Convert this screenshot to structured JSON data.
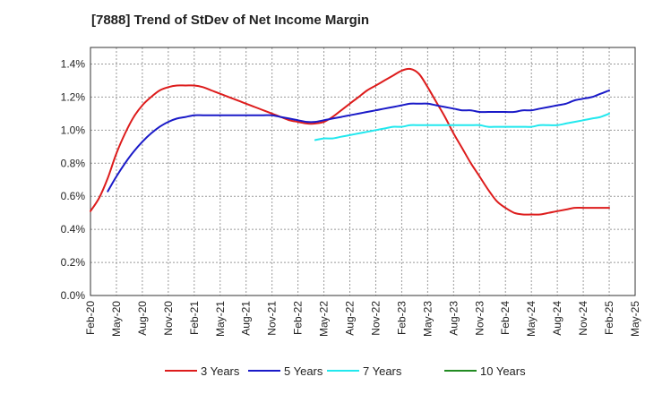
{
  "chart_data": {
    "type": "line",
    "title": "[7888]  Trend of StDev of Net Income Margin",
    "xlabel": "",
    "ylabel": "",
    "x_ticks": [
      "Feb-20",
      "May-20",
      "Aug-20",
      "Nov-20",
      "Feb-21",
      "May-21",
      "Aug-21",
      "Nov-21",
      "Feb-22",
      "May-22",
      "Aug-22",
      "Nov-22",
      "Feb-23",
      "May-23",
      "Aug-23",
      "Nov-23",
      "Feb-24",
      "May-24",
      "Aug-24",
      "Nov-24",
      "Feb-25",
      "May-25"
    ],
    "y_ticks": [
      "0.0%",
      "0.2%",
      "0.4%",
      "0.6%",
      "0.8%",
      "1.0%",
      "1.2%",
      "1.4%"
    ],
    "ylim": [
      0,
      1.5
    ],
    "grid": true,
    "legend_position": "bottom",
    "series": [
      {
        "name": "3 Years",
        "color": "#dd1c1c",
        "points": [
          [
            "Feb-20",
            0.51
          ],
          [
            "Mar-20",
            0.59
          ],
          [
            "Apr-20",
            0.71
          ],
          [
            "May-20",
            0.86
          ],
          [
            "Jun-20",
            0.98
          ],
          [
            "Jul-20",
            1.08
          ],
          [
            "Aug-20",
            1.15
          ],
          [
            "Sep-20",
            1.2
          ],
          [
            "Oct-20",
            1.24
          ],
          [
            "Nov-20",
            1.26
          ],
          [
            "Dec-20",
            1.27
          ],
          [
            "Jan-21",
            1.27
          ],
          [
            "Feb-21",
            1.27
          ],
          [
            "Mar-21",
            1.26
          ],
          [
            "Apr-21",
            1.24
          ],
          [
            "May-21",
            1.22
          ],
          [
            "Jun-21",
            1.2
          ],
          [
            "Jul-21",
            1.18
          ],
          [
            "Aug-21",
            1.16
          ],
          [
            "Sep-21",
            1.14
          ],
          [
            "Oct-21",
            1.12
          ],
          [
            "Nov-21",
            1.1
          ],
          [
            "Dec-21",
            1.08
          ],
          [
            "Jan-22",
            1.06
          ],
          [
            "Feb-22",
            1.05
          ],
          [
            "Mar-22",
            1.04
          ],
          [
            "Apr-22",
            1.04
          ],
          [
            "May-22",
            1.05
          ],
          [
            "Jun-22",
            1.08
          ],
          [
            "Jul-22",
            1.12
          ],
          [
            "Aug-22",
            1.16
          ],
          [
            "Sep-22",
            1.2
          ],
          [
            "Oct-22",
            1.24
          ],
          [
            "Nov-22",
            1.27
          ],
          [
            "Dec-22",
            1.3
          ],
          [
            "Jan-23",
            1.33
          ],
          [
            "Feb-23",
            1.36
          ],
          [
            "Mar-23",
            1.37
          ],
          [
            "Apr-23",
            1.34
          ],
          [
            "May-23",
            1.26
          ],
          [
            "Jun-23",
            1.17
          ],
          [
            "Jul-23",
            1.08
          ],
          [
            "Aug-23",
            0.98
          ],
          [
            "Sep-23",
            0.89
          ],
          [
            "Oct-23",
            0.8
          ],
          [
            "Nov-23",
            0.72
          ],
          [
            "Dec-23",
            0.64
          ],
          [
            "Jan-24",
            0.57
          ],
          [
            "Feb-24",
            0.53
          ],
          [
            "Mar-24",
            0.5
          ],
          [
            "Apr-24",
            0.49
          ],
          [
            "May-24",
            0.49
          ],
          [
            "Jun-24",
            0.49
          ],
          [
            "Jul-24",
            0.5
          ],
          [
            "Aug-24",
            0.51
          ],
          [
            "Sep-24",
            0.52
          ],
          [
            "Oct-24",
            0.53
          ],
          [
            "Nov-24",
            0.53
          ],
          [
            "Dec-24",
            0.53
          ],
          [
            "Jan-25",
            0.53
          ],
          [
            "Feb-25",
            0.53
          ]
        ]
      },
      {
        "name": "5 Years",
        "color": "#1a1ac8",
        "points": [
          [
            "Apr-20",
            0.63
          ],
          [
            "May-20",
            0.72
          ],
          [
            "Jun-20",
            0.8
          ],
          [
            "Jul-20",
            0.87
          ],
          [
            "Aug-20",
            0.93
          ],
          [
            "Sep-20",
            0.98
          ],
          [
            "Oct-20",
            1.02
          ],
          [
            "Nov-20",
            1.05
          ],
          [
            "Dec-20",
            1.07
          ],
          [
            "Jan-21",
            1.08
          ],
          [
            "Feb-21",
            1.09
          ],
          [
            "Mar-21",
            1.09
          ],
          [
            "Apr-21",
            1.09
          ],
          [
            "May-21",
            1.09
          ],
          [
            "Jun-21",
            1.09
          ],
          [
            "Jul-21",
            1.09
          ],
          [
            "Aug-21",
            1.09
          ],
          [
            "Sep-21",
            1.09
          ],
          [
            "Oct-21",
            1.09
          ],
          [
            "Nov-21",
            1.09
          ],
          [
            "Dec-21",
            1.08
          ],
          [
            "Jan-22",
            1.07
          ],
          [
            "Feb-22",
            1.06
          ],
          [
            "Mar-22",
            1.05
          ],
          [
            "Apr-22",
            1.05
          ],
          [
            "May-22",
            1.06
          ],
          [
            "Jun-22",
            1.07
          ],
          [
            "Jul-22",
            1.08
          ],
          [
            "Aug-22",
            1.09
          ],
          [
            "Sep-22",
            1.1
          ],
          [
            "Oct-22",
            1.11
          ],
          [
            "Nov-22",
            1.12
          ],
          [
            "Dec-22",
            1.13
          ],
          [
            "Jan-23",
            1.14
          ],
          [
            "Feb-23",
            1.15
          ],
          [
            "Mar-23",
            1.16
          ],
          [
            "Apr-23",
            1.16
          ],
          [
            "May-23",
            1.16
          ],
          [
            "Jun-23",
            1.15
          ],
          [
            "Jul-23",
            1.14
          ],
          [
            "Aug-23",
            1.13
          ],
          [
            "Sep-23",
            1.12
          ],
          [
            "Oct-23",
            1.12
          ],
          [
            "Nov-23",
            1.11
          ],
          [
            "Dec-23",
            1.11
          ],
          [
            "Jan-24",
            1.11
          ],
          [
            "Feb-24",
            1.11
          ],
          [
            "Mar-24",
            1.11
          ],
          [
            "Apr-24",
            1.12
          ],
          [
            "May-24",
            1.12
          ],
          [
            "Jun-24",
            1.13
          ],
          [
            "Jul-24",
            1.14
          ],
          [
            "Aug-24",
            1.15
          ],
          [
            "Sep-24",
            1.16
          ],
          [
            "Oct-24",
            1.18
          ],
          [
            "Nov-24",
            1.19
          ],
          [
            "Dec-24",
            1.2
          ],
          [
            "Jan-25",
            1.22
          ],
          [
            "Feb-25",
            1.24
          ]
        ]
      },
      {
        "name": "7 Years",
        "color": "#22e8ee",
        "points": [
          [
            "Apr-22",
            0.94
          ],
          [
            "May-22",
            0.95
          ],
          [
            "Jun-22",
            0.95
          ],
          [
            "Jul-22",
            0.96
          ],
          [
            "Aug-22",
            0.97
          ],
          [
            "Sep-22",
            0.98
          ],
          [
            "Oct-22",
            0.99
          ],
          [
            "Nov-22",
            1.0
          ],
          [
            "Dec-22",
            1.01
          ],
          [
            "Jan-23",
            1.02
          ],
          [
            "Feb-23",
            1.02
          ],
          [
            "Mar-23",
            1.03
          ],
          [
            "Apr-23",
            1.03
          ],
          [
            "May-23",
            1.03
          ],
          [
            "Jun-23",
            1.03
          ],
          [
            "Jul-23",
            1.03
          ],
          [
            "Aug-23",
            1.03
          ],
          [
            "Sep-23",
            1.03
          ],
          [
            "Oct-23",
            1.03
          ],
          [
            "Nov-23",
            1.03
          ],
          [
            "Dec-23",
            1.02
          ],
          [
            "Jan-24",
            1.02
          ],
          [
            "Feb-24",
            1.02
          ],
          [
            "Mar-24",
            1.02
          ],
          [
            "Apr-24",
            1.02
          ],
          [
            "May-24",
            1.02
          ],
          [
            "Jun-24",
            1.03
          ],
          [
            "Jul-24",
            1.03
          ],
          [
            "Aug-24",
            1.03
          ],
          [
            "Sep-24",
            1.04
          ],
          [
            "Oct-24",
            1.05
          ],
          [
            "Nov-24",
            1.06
          ],
          [
            "Dec-24",
            1.07
          ],
          [
            "Jan-25",
            1.08
          ],
          [
            "Feb-25",
            1.1
          ]
        ]
      },
      {
        "name": "10 Years",
        "color": "#228b22",
        "points": []
      }
    ]
  }
}
